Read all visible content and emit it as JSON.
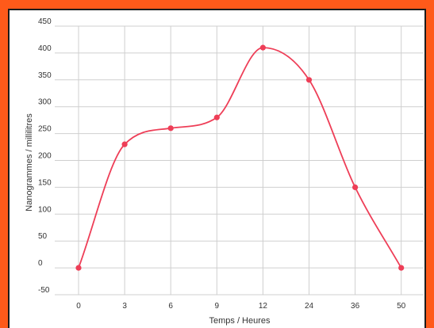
{
  "chart_data": {
    "type": "line",
    "categories": [
      "0",
      "3",
      "6",
      "9",
      "12",
      "24",
      "36",
      "50"
    ],
    "series": [
      {
        "values": [
          0,
          230,
          260,
          280,
          410,
          350,
          150,
          0
        ]
      }
    ],
    "xlabel": "Temps / Heures",
    "ylabel": "Nanogrammes / millilitres",
    "ylim": [
      -50,
      450
    ],
    "yticks": [
      "-50",
      "0",
      "50",
      "100",
      "150",
      "200",
      "250",
      "300",
      "350",
      "400",
      "450"
    ],
    "grid": true,
    "line_color": "#ee3e57",
    "point_color": "#ee3e57"
  }
}
